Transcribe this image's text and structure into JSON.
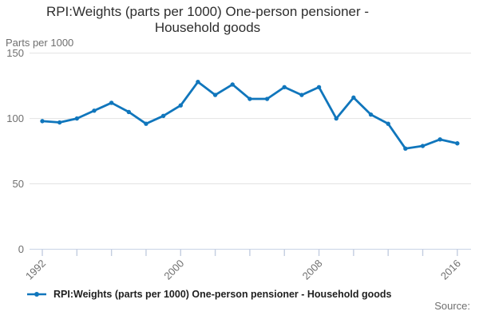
{
  "title": {
    "text": "RPI:Weights (parts per 1000) One-person pensioner - Household goods",
    "line1": "RPI:Weights (parts per 1000) One-person pensioner -",
    "line2": "Household goods"
  },
  "unit_label": "Parts per 1000",
  "legend": {
    "series_label": "RPI:Weights (parts per 1000) One-person pensioner - Household goods"
  },
  "source_label": "Source:",
  "colors": {
    "series_line": "#1076bc",
    "gridline": "#e2e2e2",
    "axis_line": "#c9d3e6",
    "tick": "#c3cde0",
    "axis_text": "#6f6f6f",
    "title_text": "#2e2e2e",
    "legend_text": "#1f1f1f"
  },
  "chart_data": {
    "type": "line",
    "title": "RPI:Weights (parts per 1000) One-person pensioner - Household goods",
    "xlabel": "",
    "ylabel": "Parts per 1000",
    "ylim": [
      0,
      150
    ],
    "yticks": [
      0,
      50,
      100,
      150
    ],
    "xticks": [
      1992,
      1994,
      1996,
      1998,
      2000,
      2002,
      2004,
      2006,
      2008,
      2010,
      2012,
      2014,
      2016
    ],
    "xtick_labels": [
      "1992",
      "2000",
      "2008",
      "2016"
    ],
    "grid": "horizontal",
    "legend_position": "bottom",
    "series": [
      {
        "name": "RPI:Weights (parts per 1000) One-person pensioner - Household goods",
        "x": [
          1992,
          1993,
          1994,
          1995,
          1996,
          1997,
          1998,
          1999,
          2000,
          2001,
          2002,
          2003,
          2004,
          2005,
          2006,
          2007,
          2008,
          2009,
          2010,
          2011,
          2012,
          2013,
          2014,
          2015,
          2016
        ],
        "values": [
          98,
          97,
          100,
          106,
          112,
          105,
          96,
          102,
          110,
          128,
          118,
          126,
          115,
          115,
          124,
          118,
          124,
          100,
          116,
          103,
          96,
          77,
          79,
          84,
          81
        ]
      }
    ]
  }
}
